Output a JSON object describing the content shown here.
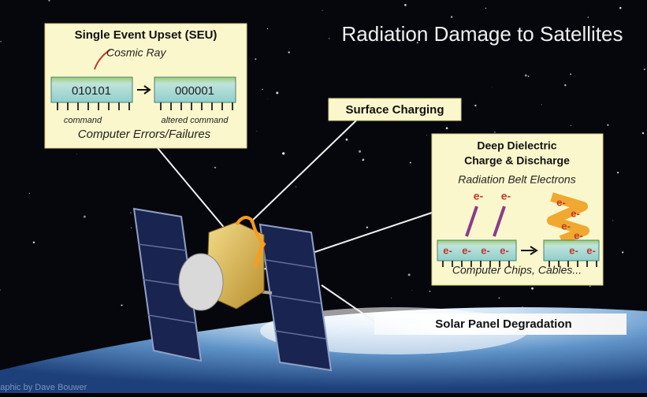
{
  "title": "Radiation Damage to Satellites",
  "seu": {
    "title": "Single Event Upset (SEU)",
    "cosmic_ray": "Cosmic Ray",
    "chip_before": "010101",
    "chip_after": "000001",
    "label_before": "command",
    "label_after": "altered command",
    "caption": "Computer Errors/Failures"
  },
  "surface_charging": "Surface Charging",
  "deep_dielectric": {
    "title": [
      "Deep Dielectric",
      "Charge & Discharge"
    ],
    "subtitle": "Radiation Belt Electrons",
    "incoming": [
      "e-",
      "e-"
    ],
    "chip_before": [
      "e-",
      "e-",
      "e-",
      "e-"
    ],
    "flying": [
      "e-",
      "e-",
      "e-",
      "e-"
    ],
    "chip_after": [
      "e-",
      "e-"
    ],
    "caption": "Computer Chips, Cables..."
  },
  "solar_panel": "Solar Panel Degradation",
  "credit": "Graphic by Dave Bouwer"
}
